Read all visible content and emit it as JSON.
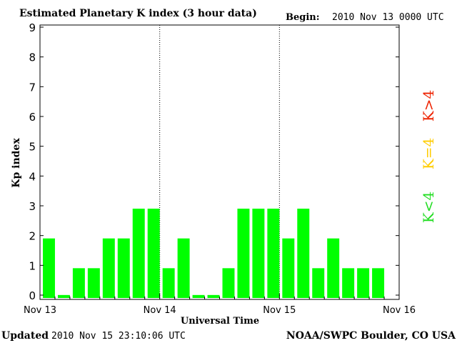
{
  "header": {
    "title": "Estimated Planetary K index (3 hour data)",
    "begin_label": "Begin:",
    "begin_value": "2010 Nov 13 0000 UTC"
  },
  "footer": {
    "updated_label": "Updated",
    "updated_value": "2010 Nov 15 23:10:06 UTC",
    "credit": "NOAA/SWPC Boulder, CO USA"
  },
  "legend": [
    {
      "text": "K<4",
      "color": "#22dd22"
    },
    {
      "text": "K=4",
      "color": "#ffcc00"
    },
    {
      "text": "K>4",
      "color": "#ee2200"
    }
  ],
  "colors": {
    "bar_low": "#00ff00",
    "bar_mid": "#ffcc00",
    "bar_high": "#ff2200",
    "frame": "#000000"
  },
  "chart_data": {
    "type": "bar",
    "title": "Estimated Planetary K index (3 hour data)",
    "xlabel": "Universal Time",
    "ylabel": "Kp index",
    "ylim": [
      0,
      9
    ],
    "y_ticks": [
      "0",
      "1",
      "2",
      "3",
      "4",
      "5",
      "6",
      "7",
      "8",
      "9"
    ],
    "x_ticks": [
      "Nov 13",
      "Nov 14",
      "Nov 15",
      "Nov 16"
    ],
    "day_dividers": [
      "Nov 14",
      "Nov 15"
    ],
    "grid": false,
    "values": [
      2,
      0,
      1,
      1,
      2,
      2,
      3,
      3,
      1,
      2,
      0,
      0,
      1,
      3,
      3,
      3,
      2,
      3,
      1,
      2,
      1,
      1,
      1
    ]
  }
}
